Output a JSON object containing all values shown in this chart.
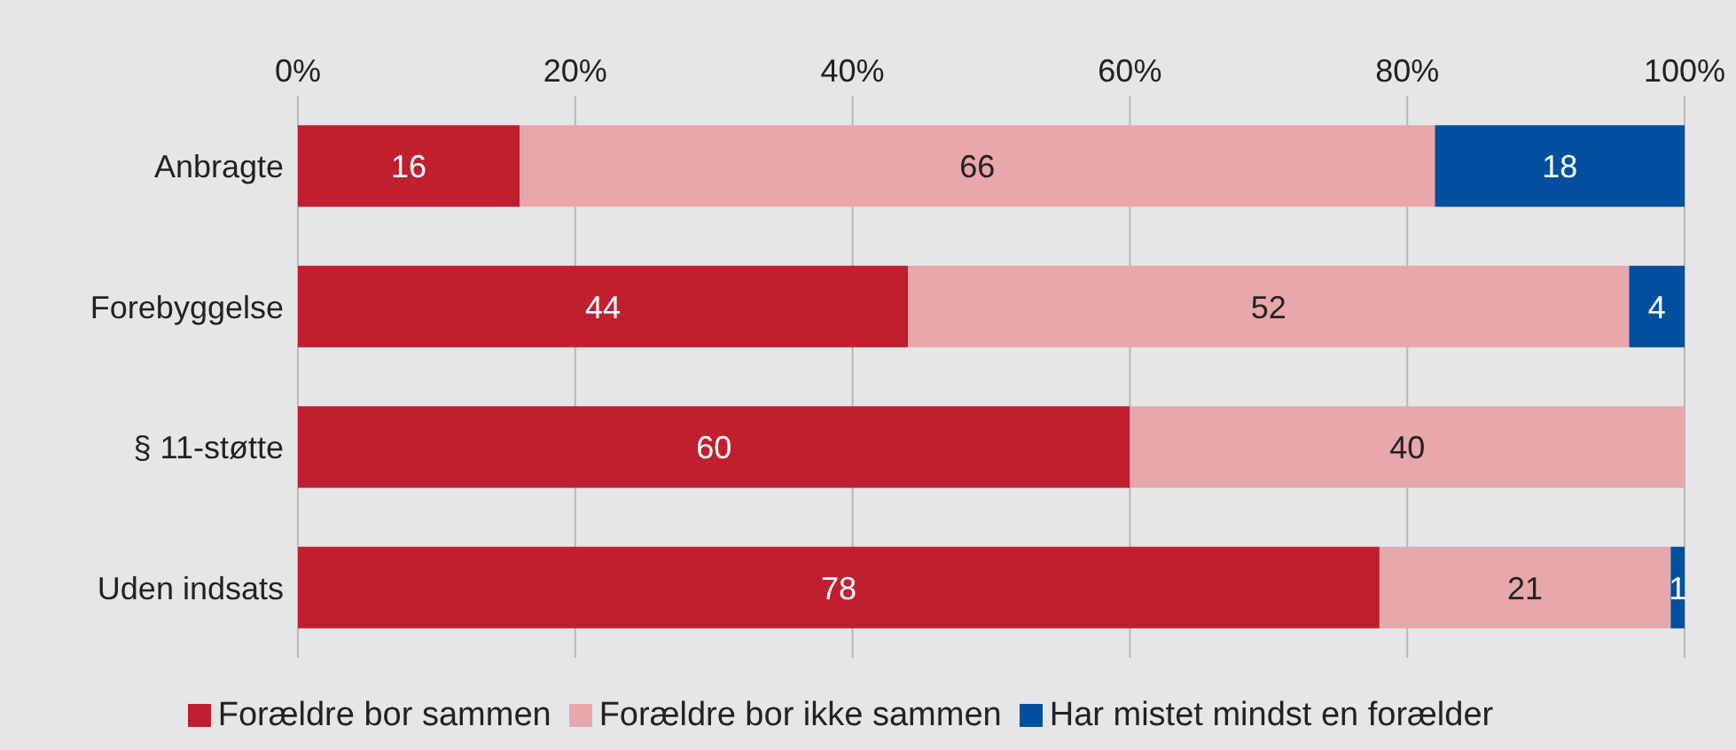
{
  "chart_data": {
    "type": "bar",
    "orientation": "horizontal",
    "stacked": true,
    "categories": [
      "Anbragte",
      "Forebyggelse",
      "§ 11-støtte",
      "Uden indsats"
    ],
    "series": [
      {
        "name": "Forældre bor sammen",
        "color": "#c01f30",
        "values": [
          16,
          44,
          60,
          78
        ]
      },
      {
        "name": "Forældre bor ikke sammen",
        "color": "#e8a7ab",
        "values": [
          66,
          52,
          40,
          21
        ]
      },
      {
        "name": "Har mistet mindst en forælder",
        "color": "#00509d",
        "values": [
          18,
          4,
          null,
          1
        ]
      }
    ],
    "xlim": [
      0,
      100
    ],
    "xticks": [
      {
        "value": 0,
        "label": "0%"
      },
      {
        "value": 20,
        "label": "20%"
      },
      {
        "value": 40,
        "label": "40%"
      },
      {
        "value": 60,
        "label": "60%"
      },
      {
        "value": 80,
        "label": "80%"
      },
      {
        "value": 100,
        "label": "100%"
      }
    ],
    "grid": "x",
    "legend": "bottom",
    "data_labels": true
  }
}
